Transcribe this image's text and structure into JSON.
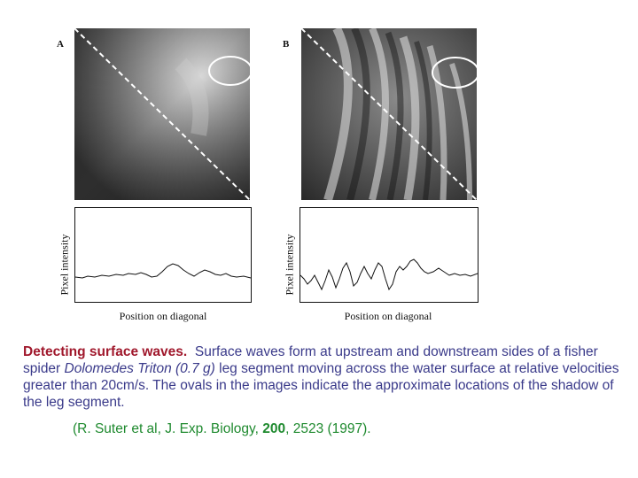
{
  "figure": {
    "panel_a": {
      "letter": "A",
      "ylabel": "Pixel intensity",
      "xlabel": "Position on diagonal"
    },
    "panel_b": {
      "letter": "B",
      "ylabel": "Pixel intensity",
      "xlabel": "Position on diagonal"
    }
  },
  "caption": {
    "lead": "Detecting surface waves.",
    "part1": "Surface waves form at upstream and downstream sides of a fisher spider ",
    "species": "Dolomedes Triton (0.7 g)",
    "part2": " leg segment moving across the water surface at relative velocities greater than 20cm/s. The ovals in the images indicate the approximate locations of the shadow of the leg segment."
  },
  "citation": {
    "prefix": "(R. Suter et al, J. Exp. Biology, ",
    "volume": "200",
    "suffix": ", 2523 (1997)."
  }
}
